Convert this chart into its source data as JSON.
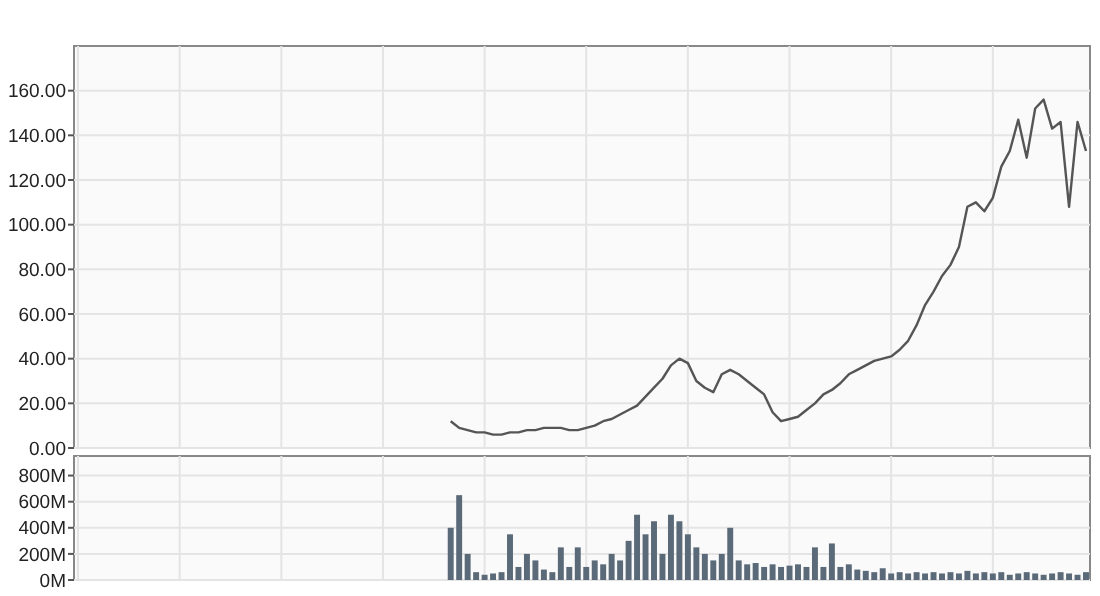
{
  "chart_data": [
    {
      "type": "line",
      "categories": [
        null,
        null,
        null,
        null,
        null,
        null,
        null,
        null,
        null,
        null,
        null,
        null,
        null,
        null,
        null,
        null,
        null,
        null,
        null,
        null,
        null,
        null,
        null,
        null,
        null,
        null,
        null,
        null,
        null,
        null,
        null,
        null,
        null,
        null,
        null,
        null,
        null,
        null,
        null,
        null,
        null,
        null,
        null,
        null,
        null,
        null,
        null,
        null,
        null,
        null,
        null,
        null,
        null,
        null,
        null,
        null,
        null,
        null,
        null,
        null,
        null,
        null,
        null,
        null,
        null,
        null,
        null,
        null,
        null,
        null,
        null,
        null,
        null,
        null,
        null,
        null,
        null,
        null,
        null,
        null,
        null,
        null,
        null,
        null,
        null,
        null,
        null,
        null,
        null,
        null,
        null,
        null,
        null,
        null,
        null,
        null,
        null,
        null,
        null,
        null,
        null,
        null,
        null,
        null,
        null,
        null,
        null,
        null,
        null,
        null,
        null,
        null,
        null,
        null,
        null,
        null,
        null,
        null,
        null,
        null
      ],
      "series": [
        {
          "color": "#555555",
          "values": [
            null,
            null,
            null,
            null,
            null,
            null,
            null,
            null,
            null,
            null,
            null,
            null,
            null,
            null,
            null,
            null,
            null,
            null,
            null,
            null,
            null,
            null,
            null,
            null,
            null,
            null,
            null,
            null,
            null,
            null,
            null,
            null,
            null,
            null,
            null,
            null,
            null,
            null,
            null,
            null,
            null,
            null,
            null,
            null,
            12,
            9,
            8,
            7,
            7,
            6,
            6,
            7,
            7,
            8,
            8,
            9,
            9,
            9,
            8,
            8,
            9,
            10,
            12,
            13,
            15,
            17,
            19,
            23,
            27,
            31,
            37,
            40,
            38,
            30,
            27,
            25,
            33,
            35,
            33,
            30,
            27,
            24,
            16,
            12,
            13,
            14,
            17,
            20,
            24,
            26,
            29,
            33,
            35,
            37,
            39,
            40,
            41,
            44,
            48,
            55,
            64,
            70,
            77,
            82,
            90,
            108,
            110,
            106,
            112,
            126,
            133,
            147,
            130,
            152,
            156,
            143,
            146,
            108,
            146,
            133
          ]
        }
      ],
      "ylim": [
        0,
        180
      ],
      "yticks": [
        {
          "value": 0,
          "label": "0.00"
        },
        {
          "value": 20,
          "label": "20.00"
        },
        {
          "value": 40,
          "label": "40.00"
        },
        {
          "value": 60,
          "label": "60.00"
        },
        {
          "value": 80,
          "label": "80.00"
        },
        {
          "value": 100,
          "label": "100.00"
        },
        {
          "value": 120,
          "label": "120.00"
        },
        {
          "value": 140,
          "label": "140.00"
        },
        {
          "value": 160,
          "label": "160.00"
        }
      ],
      "grid": true,
      "tick_labels": "y"
    },
    {
      "type": "bar",
      "categories": [
        null,
        null,
        null,
        null,
        null,
        null,
        null,
        null,
        null,
        null,
        null,
        null,
        null,
        null,
        null,
        null,
        null,
        null,
        null,
        null,
        null,
        null,
        null,
        null,
        null,
        null,
        null,
        null,
        null,
        null,
        null,
        null,
        null,
        null,
        null,
        null,
        null,
        null,
        null,
        null,
        null,
        null,
        null,
        null,
        null,
        null,
        null,
        null,
        null,
        null,
        null,
        null,
        null,
        null,
        null,
        null,
        null,
        null,
        null,
        null,
        null,
        null,
        null,
        null,
        null,
        null,
        null,
        null,
        null,
        null,
        null,
        null,
        null,
        null,
        null,
        null,
        null,
        null,
        null,
        null,
        null,
        null,
        null,
        null,
        null,
        null,
        null,
        null,
        null,
        null,
        null,
        null,
        null,
        null,
        null,
        null,
        null,
        null,
        null,
        null,
        null,
        null,
        null,
        null,
        null,
        null,
        null,
        null,
        null,
        null,
        null,
        null,
        null,
        null,
        null,
        null,
        null,
        null,
        null,
        null
      ],
      "series": [
        {
          "color": "#5a6a78",
          "values": [
            null,
            null,
            null,
            null,
            null,
            null,
            null,
            null,
            null,
            null,
            null,
            null,
            null,
            null,
            null,
            null,
            null,
            null,
            null,
            null,
            null,
            null,
            null,
            null,
            null,
            null,
            null,
            null,
            null,
            null,
            null,
            null,
            null,
            null,
            null,
            null,
            null,
            null,
            null,
            null,
            null,
            null,
            null,
            null,
            400,
            650,
            200,
            60,
            40,
            50,
            60,
            350,
            100,
            200,
            150,
            80,
            60,
            250,
            100,
            250,
            100,
            150,
            120,
            200,
            150,
            300,
            500,
            350,
            450,
            200,
            500,
            450,
            350,
            250,
            200,
            150,
            200,
            400,
            150,
            120,
            130,
            100,
            120,
            100,
            110,
            120,
            100,
            250,
            100,
            280,
            100,
            120,
            80,
            70,
            60,
            90,
            50,
            60,
            50,
            60,
            50,
            60,
            50,
            60,
            50,
            70,
            50,
            60,
            50,
            60,
            40,
            50,
            60,
            50,
            40,
            50,
            60,
            50,
            40,
            60
          ]
        }
      ],
      "ylim": [
        0,
        950
      ],
      "yticks": [
        {
          "value": 0,
          "label": "0M"
        },
        {
          "value": 200,
          "label": "200M"
        },
        {
          "value": 400,
          "label": "400M"
        },
        {
          "value": 600,
          "label": "600M"
        },
        {
          "value": 800,
          "label": "800M"
        }
      ],
      "grid": true,
      "tick_labels": "y"
    }
  ]
}
